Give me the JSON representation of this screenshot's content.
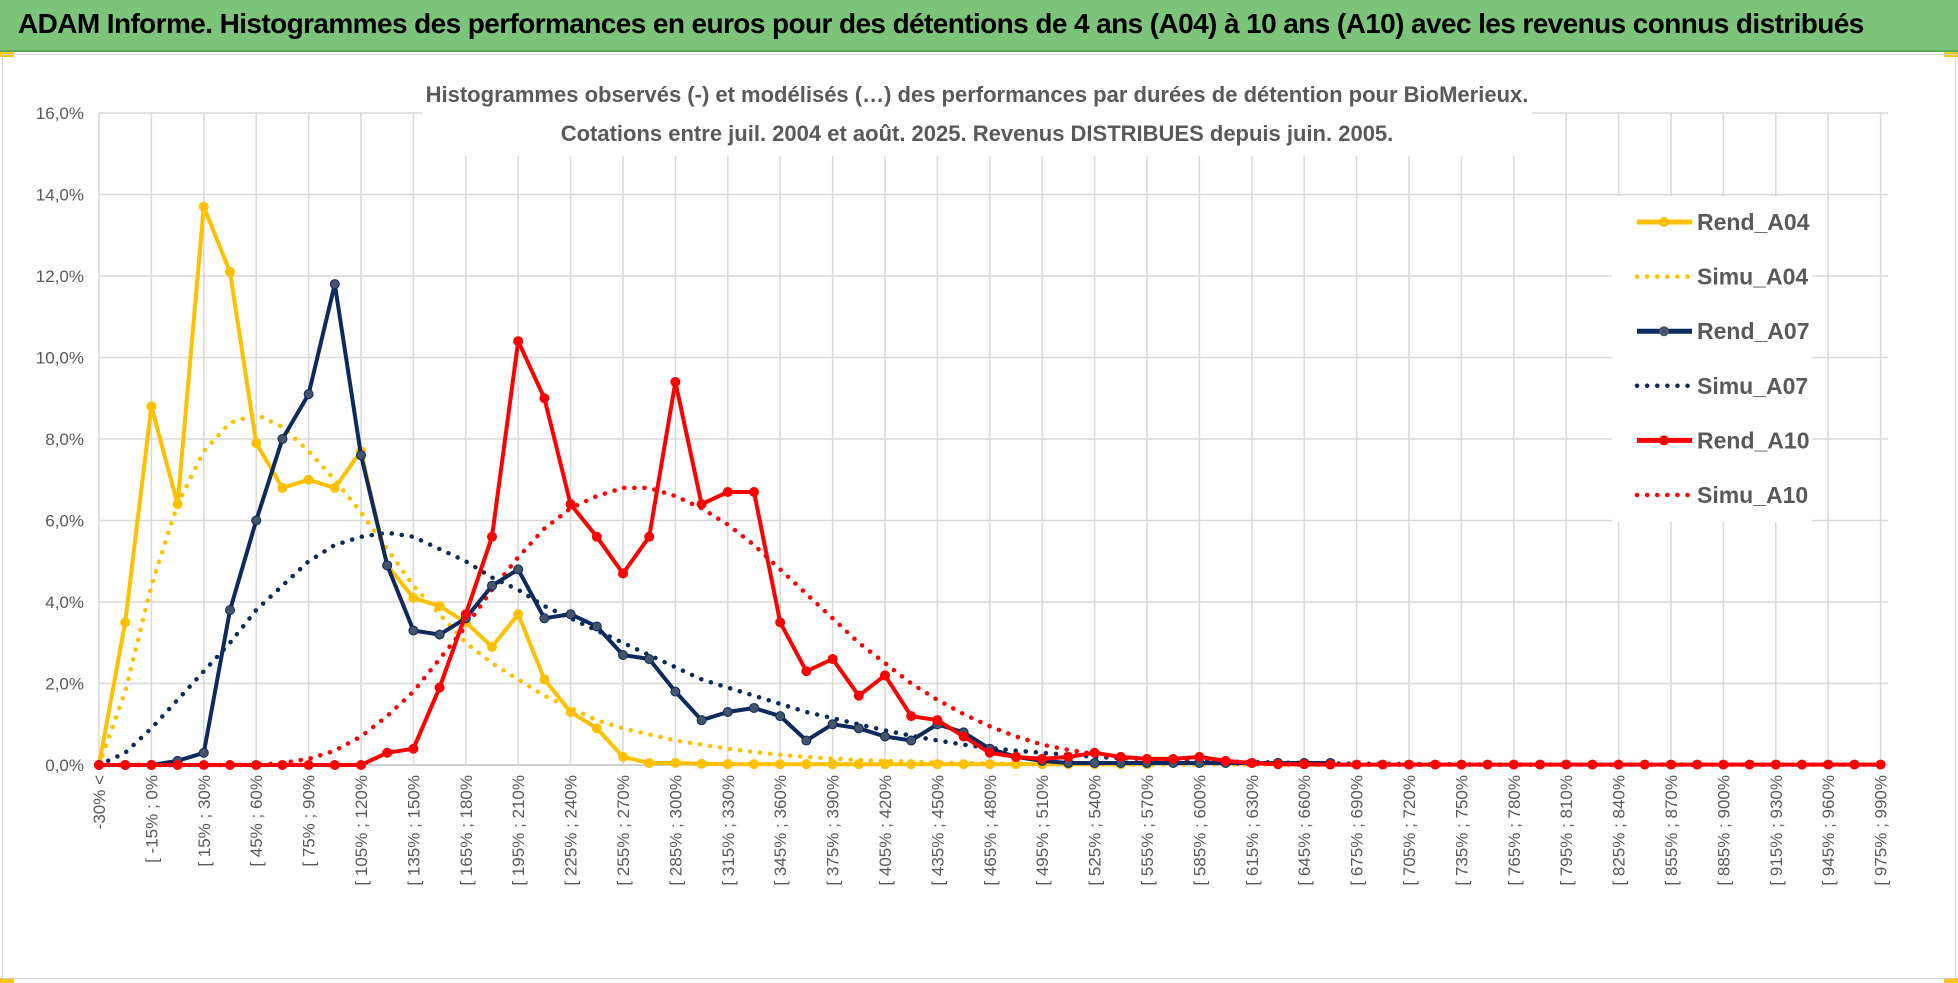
{
  "banner": {
    "title": "ADAM Informe. Histogrammes des performances en euros pour des détentions de 4 ans (A04) à 10 ans (A10) avec les revenus connus distribués"
  },
  "colors": {
    "banner_bg": "#7cc47a",
    "A04": "#ffc000",
    "A07": "#0d2a5e",
    "A10": "#ff0000",
    "grid": "#d9d9d9",
    "text": "#595959"
  },
  "chart_data": {
    "type": "line",
    "title_line1": "Histogrammes observés (-) et modélisés (…) des performances par durées de détention pour BioMerieux.",
    "title_line2": "Cotations entre juil. 2004 et août. 2025. Revenus DISTRIBUES depuis juin. 2005.",
    "ylim": [
      0,
      16
    ],
    "y_ticks": [
      "0,0%",
      "2,0%",
      "4,0%",
      "6,0%",
      "8,0%",
      "10,0%",
      "12,0%",
      "14,0%",
      "16,0%"
    ],
    "grid": true,
    "legend_position": "top-right",
    "x_labels": [
      "-30% <",
      "[ -15% ; 0%",
      "[ 15% ; 30%",
      "[ 45% ; 60%",
      "[ 75% ; 90%",
      "[ 105% ; 120%",
      "[ 135% ; 150%",
      "[ 165% ; 180%",
      "[ 195% ; 210%",
      "[ 225% ; 240%",
      "[ 255% ; 270%",
      "[ 285% ; 300%",
      "[ 315% ; 330%",
      "[ 345% ; 360%",
      "[ 375% ; 390%",
      "[ 405% ; 420%",
      "[ 435% ; 450%",
      "[ 465% ; 480%",
      "[ 495% ; 510%",
      "[ 525% ; 540%",
      "[ 555% ; 570%",
      "[ 585% ; 600%",
      "[ 615% ; 630%",
      "[ 645% ; 660%",
      "[ 675% ; 690%",
      "[ 705% ; 720%",
      "[ 735% ; 750%",
      "[ 765% ; 780%",
      "[ 795% ; 810%",
      "[ 825% ; 840%",
      "[ 855% ; 870%",
      "[ 885% ; 900%",
      "[ 915% ; 930%",
      "[ 945% ; 960%",
      "[ 975% ; 990%"
    ],
    "series": [
      {
        "name": "Rend_A04",
        "style": "solid",
        "color": "#ffc000",
        "values": [
          0,
          3.5,
          8.8,
          6.4,
          13.7,
          12.1,
          7.9,
          6.8,
          7.0,
          6.8,
          7.7,
          4.9,
          4.1,
          3.9,
          3.5,
          2.9,
          3.7,
          2.1,
          1.3,
          0.9,
          0.2,
          0.05,
          0.05,
          0.03,
          0.02,
          0.02,
          0.02,
          0.02,
          0.02,
          0.02,
          0.02,
          0.02,
          0.02,
          0.02,
          0.02,
          0.02,
          0.02,
          0.02,
          0.02,
          0.02,
          0.02
        ]
      },
      {
        "name": "Simu_A04",
        "style": "dotted",
        "color": "#ffc000",
        "values": [
          0,
          1.8,
          4.4,
          6.4,
          7.7,
          8.4,
          8.6,
          8.3,
          7.7,
          7.0,
          6.2,
          5.3,
          4.4,
          3.7,
          3.0,
          2.5,
          2.1,
          1.7,
          1.4,
          1.1,
          0.9,
          0.75,
          0.6,
          0.5,
          0.4,
          0.32,
          0.25,
          0.2,
          0.16,
          0.12,
          0.1,
          0.08,
          0.06,
          0.05,
          0.04,
          0.03,
          0.02,
          0.02,
          0.01,
          0.01,
          0.01,
          0.01,
          0.01,
          0.01,
          0.01,
          0.01,
          0.01,
          0.01
        ]
      },
      {
        "name": "Rend_A07",
        "style": "solid",
        "color": "#0d2a5e",
        "values": [
          0,
          0,
          0,
          0.1,
          0.3,
          3.8,
          6.0,
          8.0,
          9.1,
          11.8,
          7.6,
          4.9,
          3.3,
          3.2,
          3.6,
          4.4,
          4.8,
          3.6,
          3.7,
          3.4,
          2.7,
          2.6,
          1.8,
          1.1,
          1.3,
          1.4,
          1.2,
          0.6,
          1.0,
          0.9,
          0.7,
          0.6,
          1.0,
          0.8,
          0.4,
          0.2,
          0.1,
          0.05,
          0.05,
          0.05,
          0.05,
          0.05,
          0.05,
          0.05,
          0.05,
          0.05,
          0.05,
          0.05
        ]
      },
      {
        "name": "Simu_A07",
        "style": "dotted",
        "color": "#0d2a5e",
        "values": [
          0,
          0.3,
          0.9,
          1.6,
          2.3,
          3.0,
          3.8,
          4.4,
          5.0,
          5.4,
          5.6,
          5.7,
          5.6,
          5.3,
          5.0,
          4.6,
          4.3,
          3.9,
          3.6,
          3.3,
          3.0,
          2.7,
          2.4,
          2.1,
          1.9,
          1.7,
          1.5,
          1.3,
          1.15,
          1.0,
          0.85,
          0.72,
          0.6,
          0.5,
          0.42,
          0.35,
          0.3,
          0.25,
          0.2,
          0.17,
          0.14,
          0.12,
          0.1,
          0.08,
          0.07,
          0.06,
          0.05,
          0.04,
          0.03,
          0.03,
          0.02,
          0.02,
          0.02,
          0.01,
          0.01,
          0.01
        ]
      },
      {
        "name": "Rend_A10",
        "style": "solid",
        "color": "#ff0000",
        "values": [
          0,
          0,
          0,
          0,
          0,
          0,
          0,
          0,
          0,
          0,
          0,
          0.3,
          0.4,
          1.9,
          3.7,
          5.6,
          10.4,
          9.0,
          6.4,
          5.6,
          4.7,
          5.6,
          9.4,
          6.4,
          6.7,
          6.7,
          3.5,
          2.3,
          2.6,
          1.7,
          2.2,
          1.2,
          1.1,
          0.7,
          0.3,
          0.2,
          0.15,
          0.2,
          0.3,
          0.2,
          0.15,
          0.15,
          0.2,
          0.1,
          0.05,
          0.02,
          0.02,
          0.01,
          0.01,
          0.01,
          0.01,
          0.01,
          0.01,
          0.01,
          0.01,
          0.01,
          0.01,
          0.01,
          0.01,
          0.01,
          0.01,
          0.01,
          0.01,
          0.01,
          0.01,
          0.01,
          0.01,
          0.01,
          0.01,
          0.01
        ]
      },
      {
        "name": "Simu_A10",
        "style": "dotted",
        "color": "#ff0000",
        "values": [
          0,
          0,
          0,
          0,
          0,
          0,
          0,
          0.05,
          0.15,
          0.35,
          0.7,
          1.2,
          1.8,
          2.6,
          3.4,
          4.3,
          5.1,
          5.8,
          6.3,
          6.6,
          6.8,
          6.8,
          6.6,
          6.3,
          5.9,
          5.4,
          4.8,
          4.2,
          3.6,
          3.0,
          2.5,
          2.0,
          1.6,
          1.25,
          0.95,
          0.7,
          0.5,
          0.37,
          0.27,
          0.19,
          0.13,
          0.09,
          0.06,
          0.04,
          0.03,
          0.02,
          0.01,
          0.01,
          0.01,
          0.01,
          0.01,
          0.01,
          0.01,
          0.01,
          0.01,
          0.01,
          0.01,
          0.01,
          0.01,
          0.01,
          0.01,
          0.01,
          0.01,
          0.01,
          0.01,
          0.01,
          0.01,
          0.01,
          0.01,
          0.01
        ]
      }
    ]
  }
}
